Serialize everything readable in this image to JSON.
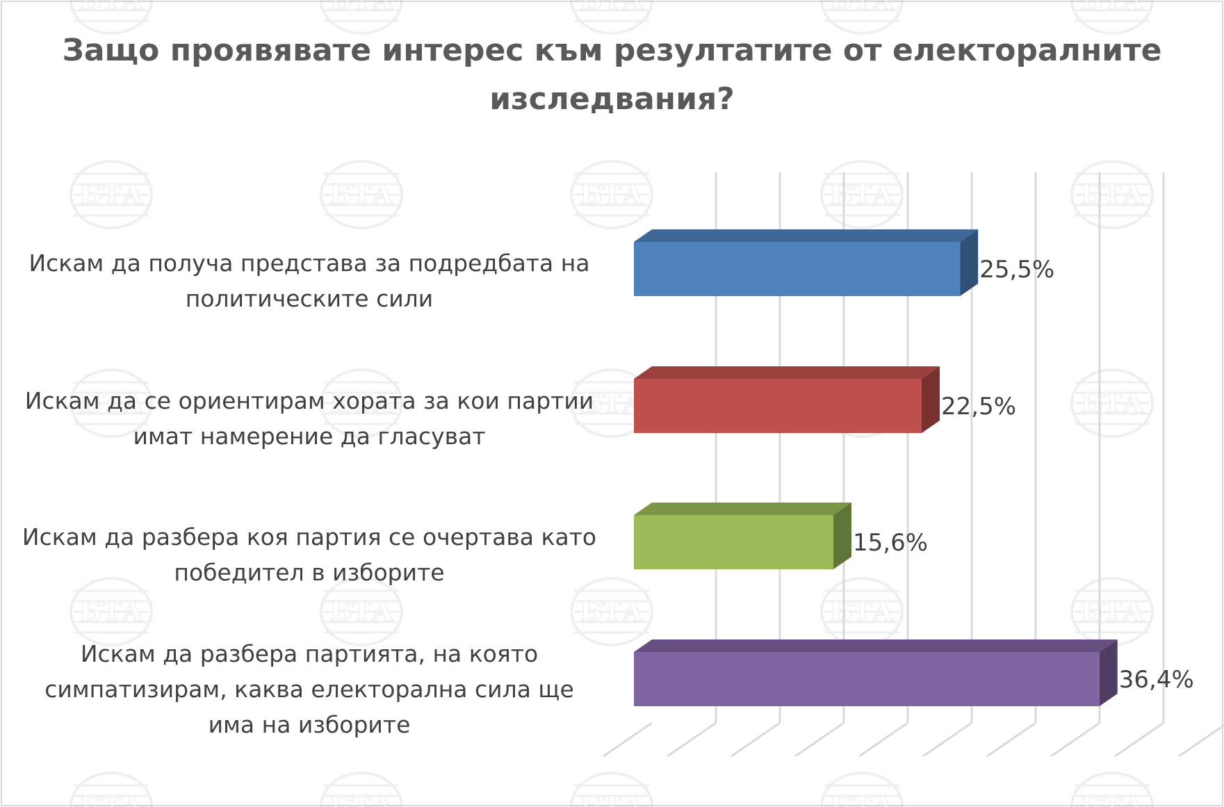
{
  "chart_data": {
    "type": "bar",
    "orientation": "horizontal",
    "style": "3d",
    "title": "Защо проявявате интерес към резултатите от електоралните изследвания?",
    "categories": [
      "Искам да получа представа за подредбата на политическите сили",
      "Искам да се ориентирам хората за кои партии имат намерение да гласуват",
      "Искам да разбера коя партия се очертава като победител в изборите",
      "Искам да разбера партията, на която симпатизирам, каква електорална сила ще има на изборите"
    ],
    "values": [
      25.5,
      22.5,
      15.6,
      36.4
    ],
    "value_labels": [
      "25,5%",
      "22,5%",
      "15,6%",
      "36,4%"
    ],
    "colors": [
      "#4f81bd",
      "#c0504d",
      "#9bbb59",
      "#8064a2"
    ],
    "xlim": [
      0,
      45
    ],
    "grid": true,
    "legend": "none"
  },
  "watermark": "БТА"
}
